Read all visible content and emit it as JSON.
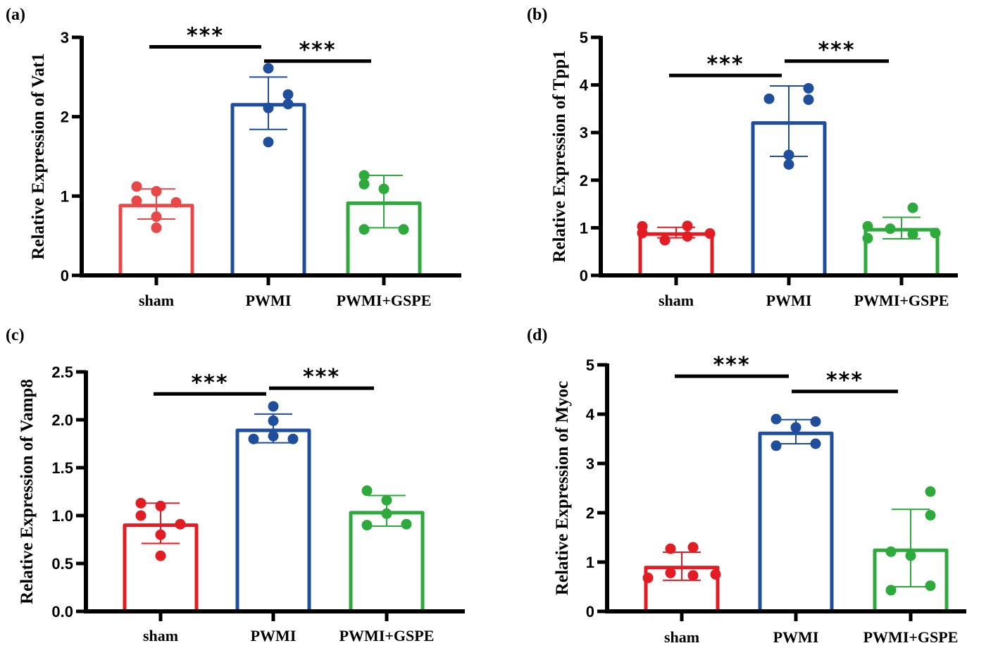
{
  "chart_data": [
    {
      "panel": "(a)",
      "type": "bar",
      "title": "",
      "xlabel": "",
      "ylabel": "Relative Expression of Vat1",
      "ylim": [
        0,
        3
      ],
      "yticks": [
        "0",
        "1",
        "2",
        "3"
      ],
      "ytick_values": [
        0,
        1,
        2,
        3
      ],
      "categories": [
        "sham",
        "PWMI",
        "PWMI+GSPE"
      ],
      "colors": [
        "#e84848",
        "#1f4e9c",
        "#2eaa3c"
      ],
      "means": [
        0.88,
        2.15,
        0.91
      ],
      "sd_upper": [
        1.09,
        2.5,
        1.26
      ],
      "sd_lower": [
        0.71,
        1.84,
        0.6
      ],
      "points": [
        [
          1.12,
          1.06,
          0.94,
          0.92,
          0.74,
          0.6
        ],
        [
          2.61,
          2.28,
          2.16,
          2.11,
          1.68
        ],
        [
          1.26,
          1.15,
          1.09,
          0.58,
          0.58
        ]
      ],
      "significance": [
        {
          "from": 0,
          "to": 1,
          "label": "***",
          "y": 2.88
        },
        {
          "from": 1,
          "to": 2,
          "label": "***",
          "y": 2.7
        }
      ]
    },
    {
      "panel": "(b)",
      "type": "bar",
      "title": "",
      "xlabel": "",
      "ylabel": "Relative Expression of Tpp1",
      "ylim": [
        0,
        5
      ],
      "yticks": [
        "0",
        "1",
        "2",
        "3",
        "4",
        "5"
      ],
      "ytick_values": [
        0,
        1,
        2,
        3,
        4,
        5
      ],
      "categories": [
        "sham",
        "PWMI",
        "PWMI+GSPE"
      ],
      "colors": [
        "#e31b23",
        "#1f4e9c",
        "#2eaa3c"
      ],
      "means": [
        0.87,
        3.2,
        0.96
      ],
      "sd_upper": [
        1.01,
        3.98,
        1.22
      ],
      "sd_lower": [
        0.79,
        2.5,
        0.77
      ],
      "points": [
        [
          1.03,
          0.74,
          0.89,
          1.04,
          0.82,
          0.88
        ],
        [
          3.71,
          3.93,
          3.69,
          2.53,
          2.33
        ],
        [
          1.03,
          0.78,
          0.98,
          1.42,
          0.86,
          0.89
        ]
      ],
      "significance": [
        {
          "from": 0,
          "to": 1,
          "label": "***",
          "y": 4.2
        },
        {
          "from": 1,
          "to": 2,
          "label": "***",
          "y": 4.5
        }
      ]
    },
    {
      "panel": "(c)",
      "type": "bar",
      "title": "",
      "xlabel": "",
      "ylabel": "Relative Expression of Vamp8",
      "ylim": [
        0,
        2.5
      ],
      "yticks": [
        "0.0",
        "0.5",
        "1.0",
        "1.5",
        "2.0",
        "2.5"
      ],
      "ytick_values": [
        0,
        0.5,
        1.0,
        1.5,
        2.0,
        2.5
      ],
      "categories": [
        "sham",
        "PWMI",
        "PWMI+GSPE"
      ],
      "colors": [
        "#e31b23",
        "#1f4e9c",
        "#2eaa3c"
      ],
      "means": [
        0.9,
        1.89,
        1.03
      ],
      "sd_upper": [
        1.13,
        2.06,
        1.21
      ],
      "sd_lower": [
        0.71,
        1.76,
        0.89
      ],
      "points": [
        [
          1.13,
          1.1,
          1.0,
          0.91,
          0.8,
          0.58
        ],
        [
          2.14,
          1.99,
          1.8,
          1.83,
          1.8
        ],
        [
          1.26,
          1.16,
          1.02,
          0.9,
          0.91
        ]
      ],
      "significance": [
        {
          "from": 0,
          "to": 1,
          "label": "***",
          "y": 2.27
        },
        {
          "from": 1,
          "to": 2,
          "label": "***",
          "y": 2.33
        }
      ]
    },
    {
      "panel": "(d)",
      "type": "bar",
      "title": "",
      "xlabel": "",
      "ylabel": "Relative Expression of Myoc",
      "ylim": [
        0,
        5
      ],
      "yticks": [
        "0",
        "1",
        "2",
        "3",
        "4",
        "5"
      ],
      "ytick_values": [
        0,
        1,
        2,
        3,
        4,
        5
      ],
      "categories": [
        "sham",
        "PWMI",
        "PWMI+GSPE"
      ],
      "colors": [
        "#e31b23",
        "#1f4e9c",
        "#2eaa3c"
      ],
      "means": [
        0.89,
        3.61,
        1.24
      ],
      "sd_upper": [
        1.2,
        3.89,
        2.07
      ],
      "sd_lower": [
        0.63,
        3.4,
        0.5
      ],
      "points": [
        [
          0.68,
          1.27,
          1.3,
          0.78,
          0.73,
          0.75
        ],
        [
          3.9,
          3.85,
          3.73,
          3.36,
          3.4
        ],
        [
          2.43,
          1.95,
          1.21,
          1.13,
          0.52,
          0.43
        ]
      ],
      "significance": [
        {
          "from": 0,
          "to": 1,
          "label": "***",
          "y": 4.77
        },
        {
          "from": 1,
          "to": 2,
          "label": "***",
          "y": 4.46
        }
      ]
    }
  ]
}
